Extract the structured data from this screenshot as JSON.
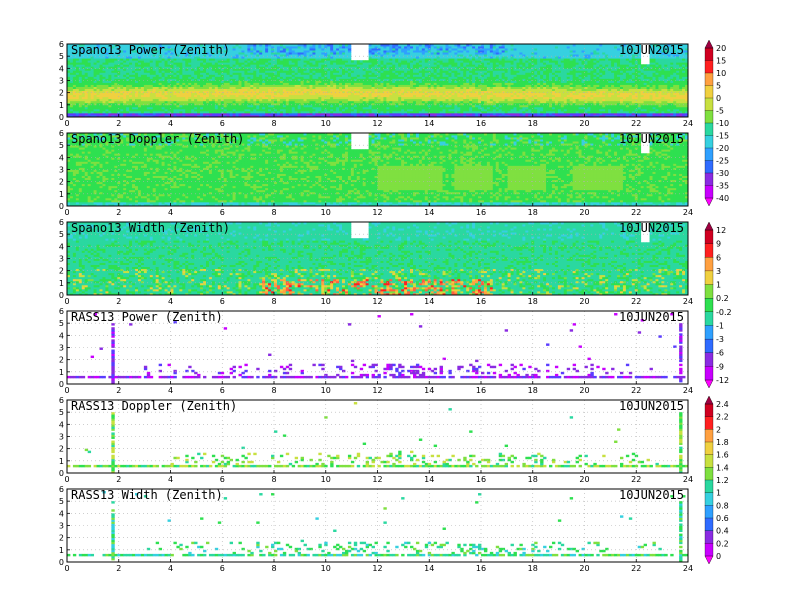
{
  "chart_data": [
    {
      "type": "heatmap",
      "title": "Spano13 Power (Zenith)",
      "date": "10JUN2015",
      "xlim": [
        0,
        24
      ],
      "ylim": [
        0,
        6
      ],
      "xticks": [
        "0",
        "2",
        "4",
        "6",
        "8",
        "10",
        "12",
        "14",
        "16",
        "18",
        "20",
        "22",
        "24"
      ],
      "yticks": [
        "0",
        "1",
        "2",
        "3",
        "4",
        "5",
        "6"
      ],
      "grid": true,
      "pattern": "power",
      "colorbar": [
        "20",
        "15",
        "10",
        "5",
        "0",
        "-5",
        "-10",
        "-15",
        "-20",
        "-25",
        "-30",
        "-35",
        "-40"
      ],
      "colorbar_group": 0
    },
    {
      "type": "heatmap",
      "title": "Spano13 Doppler (Zenith)",
      "date": "10JUN2015",
      "xlim": [
        0,
        24
      ],
      "ylim": [
        0,
        6
      ],
      "xticks": [
        "0",
        "2",
        "4",
        "6",
        "8",
        "10",
        "12",
        "14",
        "16",
        "18",
        "20",
        "22",
        "24"
      ],
      "yticks": [
        "0",
        "1",
        "2",
        "3",
        "4",
        "5",
        "6"
      ],
      "grid": true,
      "pattern": "doppler",
      "colorbar_group": 0
    },
    {
      "type": "heatmap",
      "title": "Spano13 Width (Zenith)",
      "date": "10JUN2015",
      "xlim": [
        0,
        24
      ],
      "ylim": [
        0,
        6
      ],
      "xticks": [
        "0",
        "2",
        "4",
        "6",
        "8",
        "10",
        "12",
        "14",
        "16",
        "18",
        "20",
        "22",
        "24"
      ],
      "yticks": [
        "0",
        "1",
        "2",
        "3",
        "4",
        "5",
        "6"
      ],
      "grid": true,
      "pattern": "width",
      "colorbar": [
        "12",
        "9",
        "6",
        "3",
        "1",
        "0.2",
        "-0.2",
        "-1",
        "-3",
        "-6",
        "-9",
        "-12"
      ],
      "colorbar_group": 1
    },
    {
      "type": "heatmap",
      "title": "RASS13 Power (Zenith)",
      "date": "10JUN2015",
      "xlim": [
        0,
        24
      ],
      "ylim": [
        0,
        6
      ],
      "xticks": [
        "0",
        "2",
        "4",
        "6",
        "8",
        "10",
        "12",
        "14",
        "16",
        "18",
        "20",
        "22",
        "24"
      ],
      "yticks": [
        "0",
        "1",
        "2",
        "3",
        "4",
        "5",
        "6"
      ],
      "grid": true,
      "pattern": "rass_power",
      "colorbar_group": 1
    },
    {
      "type": "heatmap",
      "title": "RASS13 Doppler (Zenith)",
      "date": "10JUN2015",
      "xlim": [
        0,
        24
      ],
      "ylim": [
        0,
        6
      ],
      "xticks": [
        "0",
        "2",
        "4",
        "6",
        "8",
        "10",
        "12",
        "14",
        "16",
        "18",
        "20",
        "22",
        "24"
      ],
      "yticks": [
        "0",
        "1",
        "2",
        "3",
        "4",
        "5",
        "6"
      ],
      "grid": true,
      "pattern": "rass_doppler",
      "colorbar": [
        "2.4",
        "2.2",
        "2",
        "1.8",
        "1.6",
        "1.4",
        "1.2",
        "1",
        "0.8",
        "0.6",
        "0.4",
        "0.2",
        "0"
      ],
      "colorbar_group": 2
    },
    {
      "type": "heatmap",
      "title": "RASS13 Width (Zenith)",
      "date": "10JUN2015",
      "xlim": [
        0,
        24
      ],
      "ylim": [
        0,
        6
      ],
      "xticks": [
        "0",
        "2",
        "4",
        "6",
        "8",
        "10",
        "12",
        "14",
        "16",
        "18",
        "20",
        "22",
        "24"
      ],
      "yticks": [
        "0",
        "1",
        "2",
        "3",
        "4",
        "5",
        "6"
      ],
      "grid": true,
      "pattern": "rass_width",
      "colorbar_group": 2
    }
  ],
  "colormap": [
    "#ff00ff",
    "#c800ff",
    "#8a2be2",
    "#5a3cff",
    "#2f6bff",
    "#2fa0ff",
    "#36d0e0",
    "#2ad8a0",
    "#2ee050",
    "#7fe040",
    "#c8e040",
    "#f0d040",
    "#ffa040",
    "#ff6040",
    "#ff2020",
    "#d00020",
    "#a00040"
  ]
}
